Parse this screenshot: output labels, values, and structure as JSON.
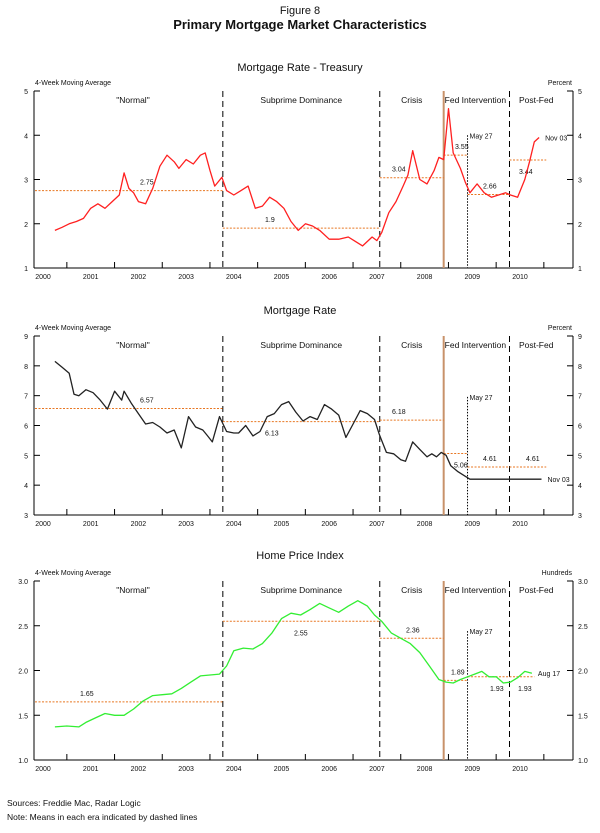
{
  "figure": {
    "number": "Figure 8",
    "title": "Primary Mortgage Market Characteristics"
  },
  "footer": {
    "sources": "Sources: Freddie Mac, Radar Logic",
    "note": "Note: Means in each era indicated by dashed lines"
  },
  "chart_data": [
    {
      "type": "line",
      "title": "Mortgage Rate - Treasury",
      "left_label": "4-Week Moving Average",
      "right_label": "Percent",
      "xlabel": "",
      "ylabel": "Percent",
      "xlim": [
        2000,
        2011
      ],
      "ylim": [
        1,
        5
      ],
      "yticks": [
        1,
        2,
        3,
        4,
        5
      ],
      "ytick_labels": [
        "1",
        "2",
        "3",
        "4",
        "5"
      ],
      "xticks": [
        2000,
        2001,
        2002,
        2003,
        2004,
        2005,
        2006,
        2007,
        2008,
        2009,
        2010
      ],
      "xtick_labels": [
        "2000",
        "2001",
        "2002",
        "2003",
        "2004",
        "2005",
        "2006",
        "2007",
        "2008",
        "2009",
        "2010"
      ],
      "series": [
        {
          "name": "Mortgage Rate - Treasury",
          "color": "#ff2020",
          "x": [
            2000.25,
            2000.4,
            2000.55,
            2000.7,
            2000.85,
            2001.0,
            2001.15,
            2001.3,
            2001.45,
            2001.6,
            2001.7,
            2001.8,
            2001.9,
            2002.0,
            2002.15,
            2002.3,
            2002.45,
            2002.6,
            2002.75,
            2002.85,
            2003.0,
            2003.15,
            2003.3,
            2003.4,
            2003.5,
            2003.6,
            2003.75,
            2003.85,
            2004.0,
            2004.15,
            2004.3,
            2004.45,
            2004.6,
            2004.75,
            2004.9,
            2005.05,
            2005.2,
            2005.35,
            2005.5,
            2005.65,
            2005.8,
            2006.0,
            2006.2,
            2006.4,
            2006.55,
            2006.7,
            2006.9,
            2007.0,
            2007.1,
            2007.25,
            2007.4,
            2007.55,
            2007.65,
            2007.75,
            2007.9,
            2008.05,
            2008.2,
            2008.3,
            2008.4,
            2008.5,
            2008.6,
            2008.75,
            2008.85,
            2008.95,
            2009.1,
            2009.25,
            2009.4,
            2009.55,
            2009.7,
            2009.8,
            2009.95,
            2010.1,
            2010.2,
            2010.3,
            2010.4
          ],
          "values": [
            1.85,
            1.92,
            2.0,
            2.05,
            2.12,
            2.35,
            2.45,
            2.35,
            2.5,
            2.65,
            3.15,
            2.8,
            2.7,
            2.5,
            2.45,
            2.8,
            3.3,
            3.55,
            3.4,
            3.25,
            3.45,
            3.35,
            3.55,
            3.6,
            3.2,
            2.85,
            3.05,
            2.75,
            2.65,
            2.75,
            2.85,
            2.35,
            2.4,
            2.6,
            2.5,
            2.35,
            2.05,
            1.85,
            2.0,
            1.95,
            1.85,
            1.65,
            1.65,
            1.7,
            1.6,
            1.5,
            1.7,
            1.62,
            1.8,
            2.25,
            2.5,
            2.85,
            3.1,
            3.65,
            3.0,
            2.9,
            3.2,
            3.5,
            3.45,
            4.6,
            3.6,
            3.25,
            2.95,
            2.7,
            2.9,
            2.7,
            2.6,
            2.65,
            2.7,
            2.65,
            2.6,
            3.0,
            3.4,
            3.85,
            3.95
          ]
        }
      ],
      "means": [
        {
          "era": "\"Normal\"",
          "x": [
            2000,
            2003.77
          ],
          "value": 2.75,
          "label": "2.75"
        },
        {
          "era": "Subprime Dominance",
          "x": [
            2003.77,
            2007.06
          ],
          "value": 1.9,
          "label": "1.9"
        },
        {
          "era": "Crisis",
          "x": [
            2007.06,
            2008.4
          ],
          "value": 3.04,
          "label": "3.04"
        },
        {
          "era": "Fed Intervention pre-May 27",
          "x": [
            2008.4,
            2008.9
          ],
          "value": 3.55,
          "label": "3.55"
        },
        {
          "era": "Fed Intervention",
          "x": [
            2008.9,
            2009.78
          ],
          "value": 2.66,
          "label": "2.66"
        },
        {
          "era": "Post-Fed",
          "x": [
            2009.78,
            2010.55
          ],
          "value": 3.44,
          "label": "3.44"
        }
      ],
      "annotations": [
        {
          "text": "May 27",
          "x": 2008.9
        },
        {
          "text": "Nov 03",
          "x": 2010.45
        }
      ]
    },
    {
      "type": "line",
      "title": "Mortgage Rate",
      "left_label": "4-Week Moving Average",
      "right_label": "Percent",
      "xlabel": "",
      "ylabel": "Percent",
      "xlim": [
        2000,
        2011
      ],
      "ylim": [
        3,
        9
      ],
      "yticks": [
        3,
        4,
        5,
        6,
        7,
        8,
        9
      ],
      "ytick_labels": [
        "3",
        "4",
        "5",
        "6",
        "7",
        "8",
        "9"
      ],
      "xticks": [
        2000,
        2001,
        2002,
        2003,
        2004,
        2005,
        2006,
        2007,
        2008,
        2009,
        2010
      ],
      "xtick_labels": [
        "2000",
        "2001",
        "2002",
        "2003",
        "2004",
        "2005",
        "2006",
        "2007",
        "2008",
        "2009",
        "2010"
      ],
      "series": [
        {
          "name": "Mortgage Rate",
          "color": "#222222",
          "x": [
            2000.25,
            2000.4,
            2000.55,
            2000.65,
            2000.75,
            2000.9,
            2001.05,
            2001.2,
            2001.35,
            2001.5,
            2001.65,
            2001.7,
            2001.85,
            2002.0,
            2002.15,
            2002.3,
            2002.45,
            2002.6,
            2002.75,
            2002.9,
            2003.05,
            2003.2,
            2003.35,
            2003.45,
            2003.55,
            2003.7,
            2003.85,
            2004.0,
            2004.1,
            2004.25,
            2004.4,
            2004.55,
            2004.7,
            2004.85,
            2005.0,
            2005.15,
            2005.3,
            2005.45,
            2005.6,
            2005.75,
            2005.9,
            2006.05,
            2006.2,
            2006.35,
            2006.5,
            2006.65,
            2006.8,
            2006.95,
            2007.05,
            2007.2,
            2007.35,
            2007.5,
            2007.6,
            2007.75,
            2007.9,
            2008.05,
            2008.15,
            2008.25,
            2008.35,
            2008.45,
            2008.55,
            2008.7,
            2008.85,
            2008.95,
            2009.1,
            2009.25,
            2009.4,
            2009.55,
            2009.7,
            2009.85,
            2010.0,
            2010.15,
            2010.3,
            2010.45
          ],
          "values": [
            8.15,
            7.95,
            7.75,
            7.05,
            7.0,
            7.2,
            7.1,
            6.85,
            6.55,
            7.15,
            6.85,
            7.15,
            6.75,
            6.4,
            6.05,
            6.1,
            5.95,
            5.75,
            5.85,
            5.25,
            6.3,
            5.95,
            5.85,
            5.65,
            5.45,
            6.3,
            5.8,
            5.75,
            5.75,
            6.0,
            5.65,
            5.8,
            6.3,
            6.4,
            6.7,
            6.8,
            6.45,
            6.15,
            6.3,
            6.2,
            6.7,
            6.55,
            6.35,
            5.6,
            6.05,
            6.5,
            6.4,
            6.2,
            5.7,
            5.1,
            5.05,
            4.85,
            4.8,
            5.45,
            5.2,
            4.95,
            5.05,
            4.95,
            5.1,
            5.0,
            4.65,
            4.45,
            4.3,
            4.2,
            4.2,
            4.2,
            4.2,
            4.2,
            4.2,
            4.2,
            4.2,
            4.2,
            4.2,
            4.2
          ]
        }
      ],
      "means": [
        {
          "era": "\"Normal\"",
          "x": [
            2000,
            2003.77
          ],
          "value": 6.57,
          "label": "6.57"
        },
        {
          "era": "Subprime Dominance",
          "x": [
            2003.77,
            2007.06
          ],
          "value": 6.13,
          "label": "6.13"
        },
        {
          "era": "Crisis",
          "x": [
            2007.06,
            2008.4
          ],
          "value": 6.18,
          "label": "6.18"
        },
        {
          "era": "Fed Intervention pre-May 27",
          "x": [
            2008.4,
            2008.9
          ],
          "value": 5.06,
          "label": "5.06"
        },
        {
          "era": "Fed Intervention",
          "x": [
            2008.9,
            2009.78
          ],
          "value": 4.61,
          "label": "4.61"
        },
        {
          "era": "Post-Fed",
          "x": [
            2009.78,
            2010.55
          ],
          "value": 4.61,
          "label": "4.61"
        }
      ],
      "annotations": [
        {
          "text": "May 27",
          "x": 2008.9
        },
        {
          "text": "Nov 03",
          "x": 2010.45
        }
      ]
    },
    {
      "type": "line",
      "title": "Home Price Index",
      "left_label": "4-Week Moving Average",
      "right_label": "Hundreds",
      "xlabel": "",
      "ylabel": "Hundreds",
      "xlim": [
        2000,
        2011
      ],
      "ylim": [
        1.0,
        3.0
      ],
      "yticks": [
        1.0,
        1.5,
        2.0,
        2.5,
        3.0
      ],
      "ytick_labels": [
        "1.0",
        "1.5",
        "2.0",
        "2.5",
        "3.0"
      ],
      "xticks": [
        2000,
        2001,
        2002,
        2003,
        2004,
        2005,
        2006,
        2007,
        2008,
        2009,
        2010
      ],
      "xtick_labels": [
        "2000",
        "2001",
        "2002",
        "2003",
        "2004",
        "2005",
        "2006",
        "2007",
        "2008",
        "2009",
        "2010"
      ],
      "series": [
        {
          "name": "Home Price Index",
          "color": "#33ee33",
          "x": [
            2000.25,
            2000.5,
            2000.75,
            2000.9,
            2001.1,
            2001.3,
            2001.5,
            2001.7,
            2001.9,
            2002.1,
            2002.3,
            2002.5,
            2002.7,
            2002.9,
            2003.1,
            2003.3,
            2003.5,
            2003.7,
            2003.85,
            2004.0,
            2004.2,
            2004.4,
            2004.6,
            2004.8,
            2005.0,
            2005.2,
            2005.4,
            2005.6,
            2005.8,
            2006.0,
            2006.2,
            2006.4,
            2006.6,
            2006.8,
            2006.95,
            2007.1,
            2007.3,
            2007.5,
            2007.7,
            2007.9,
            2008.1,
            2008.3,
            2008.45,
            2008.6,
            2008.75,
            2008.9,
            2009.05,
            2009.2,
            2009.35,
            2009.5,
            2009.65,
            2009.8,
            2009.95,
            2010.1,
            2010.25
          ],
          "values": [
            1.37,
            1.38,
            1.37,
            1.42,
            1.47,
            1.52,
            1.5,
            1.5,
            1.57,
            1.66,
            1.72,
            1.73,
            1.74,
            1.8,
            1.87,
            1.94,
            1.95,
            1.96,
            2.05,
            2.22,
            2.25,
            2.24,
            2.3,
            2.42,
            2.58,
            2.64,
            2.62,
            2.68,
            2.75,
            2.7,
            2.65,
            2.72,
            2.78,
            2.72,
            2.62,
            2.55,
            2.42,
            2.36,
            2.3,
            2.2,
            2.05,
            1.9,
            1.87,
            1.86,
            1.9,
            1.93,
            1.96,
            1.99,
            1.93,
            1.93,
            1.86,
            1.87,
            1.92,
            1.99,
            1.97
          ]
        }
      ],
      "means": [
        {
          "era": "\"Normal\"",
          "x": [
            2000,
            2003.77
          ],
          "value": 1.65,
          "label": "1.65"
        },
        {
          "era": "Subprime Dominance",
          "x": [
            2003.77,
            2007.06
          ],
          "value": 2.55,
          "label": "2.55"
        },
        {
          "era": "Crisis",
          "x": [
            2007.06,
            2008.4
          ],
          "value": 2.36,
          "label": "2.36"
        },
        {
          "era": "Fed Intervention pre-May 27",
          "x": [
            2008.4,
            2008.9
          ],
          "value": 1.89,
          "label": "1.89"
        },
        {
          "era": "Fed Intervention",
          "x": [
            2008.9,
            2009.78
          ],
          "value": 1.93,
          "label": "1.93"
        },
        {
          "era": "Post-Fed",
          "x": [
            2009.78,
            2010.3
          ],
          "value": 1.93,
          "label": "1.93"
        }
      ],
      "annotations": [
        {
          "text": "May 27",
          "x": 2008.9
        },
        {
          "text": "Aug 17",
          "x": 2010.3
        }
      ]
    }
  ],
  "eras": [
    {
      "label": "\"Normal\"",
      "start": 2000,
      "end": 2003.77
    },
    {
      "label": "Subprime Dominance",
      "start": 2003.77,
      "end": 2007.06
    },
    {
      "label": "Crisis",
      "start": 2007.06,
      "end": 2008.4
    },
    {
      "label": "Fed Intervention",
      "start": 2008.4,
      "end": 2009.78
    },
    {
      "label": "Post-Fed",
      "start": 2009.78,
      "end": 2011
    }
  ],
  "era_boundaries": [
    {
      "x": 2003.77,
      "style": "dashed"
    },
    {
      "x": 2007.06,
      "style": "dashed"
    },
    {
      "x": 2008.4,
      "style": "solid-tan"
    },
    {
      "x": 2008.9,
      "style": "dotted"
    },
    {
      "x": 2009.78,
      "style": "dashed"
    }
  ],
  "colors": {
    "mean_line": "#e87722",
    "fed_line": "#c8926a",
    "axis": "#000000"
  }
}
